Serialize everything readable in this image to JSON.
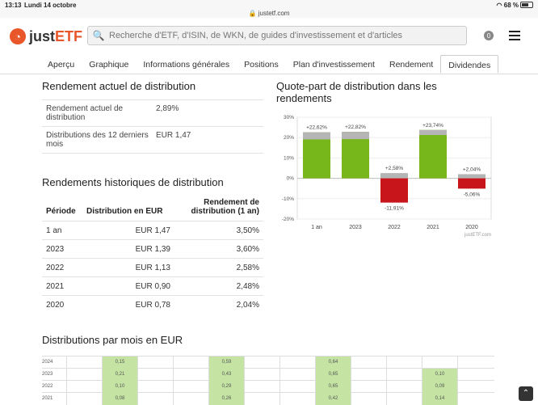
{
  "status": {
    "time": "13:13",
    "date": "Lundi 14 octobre",
    "url": "justetf.com",
    "battery": "68 %"
  },
  "header": {
    "logo_prefix": "just",
    "logo_suffix": "ETF",
    "search_placeholder": "Recherche d'ETF, d'ISIN, de WKN, de guides d'investissement et d'articles",
    "badge_count": "0"
  },
  "tabs": [
    "Aperçu",
    "Graphique",
    "Informations générales",
    "Positions",
    "Plan d'investissement",
    "Rendement",
    "Dividendes"
  ],
  "current": {
    "title": "Rendement actuel de distribution",
    "rows": [
      {
        "label": "Rendement actuel de distribution",
        "value": "2,89%"
      },
      {
        "label": "Distributions des 12 derniers mois",
        "value": "EUR 1,47"
      }
    ]
  },
  "history": {
    "title": "Rendements historiques de distribution",
    "headers": [
      "Période",
      "Distribution en EUR",
      "Rendement de distribution (1 an)"
    ],
    "rows": [
      [
        "1 an",
        "EUR 1,47",
        "3,50%"
      ],
      [
        "2023",
        "EUR 1,39",
        "3,60%"
      ],
      [
        "2022",
        "EUR 1,13",
        "2,58%"
      ],
      [
        "2021",
        "EUR 0,90",
        "2,48%"
      ],
      [
        "2020",
        "EUR 0,78",
        "2,04%"
      ]
    ]
  },
  "chart": {
    "title": "Quote-part de distribution dans les rendements",
    "source": "justETF.com",
    "yticks": [
      "30%",
      "20%",
      "10%",
      "0%",
      "-10%",
      "-20%"
    ],
    "colors": {
      "positive": "#77b71c",
      "negative": "#c8141b",
      "distribution": "#b5b5b5"
    }
  },
  "chart_data": {
    "type": "bar",
    "categories": [
      "1 an",
      "2023",
      "2022",
      "2021",
      "2020"
    ],
    "values": [
      22.62,
      22.82,
      -11.91,
      23.74,
      -5.06
    ],
    "distribution_values": [
      3.5,
      3.6,
      2.58,
      2.48,
      2.04
    ],
    "value_labels": [
      "+22,62%",
      "+22,82%",
      "-11,91%",
      "+23,74%",
      "-5,06%"
    ],
    "top_labels": [
      "+22,62%",
      "+22,82%",
      "+2,58%",
      "+23,74%",
      "+2,04%"
    ],
    "ylim": [
      -20,
      30
    ]
  },
  "monthly": {
    "title": "Distributions par mois en EUR",
    "rows": [
      {
        "year": "2024",
        "cells": [
          "",
          "0,15",
          "",
          "",
          "0,59",
          "",
          "",
          "0,64",
          "",
          "",
          "",
          ""
        ]
      },
      {
        "year": "2023",
        "cells": [
          "",
          "0,21",
          "",
          "",
          "0,43",
          "",
          "",
          "0,65",
          "",
          "",
          "0,10",
          ""
        ]
      },
      {
        "year": "2022",
        "cells": [
          "",
          "0,10",
          "",
          "",
          "0,29",
          "",
          "",
          "0,65",
          "",
          "",
          "0,09",
          ""
        ]
      },
      {
        "year": "2021",
        "cells": [
          "",
          "0,08",
          "",
          "",
          "0,26",
          "",
          "",
          "0,42",
          "",
          "",
          "0,14",
          ""
        ]
      }
    ]
  }
}
